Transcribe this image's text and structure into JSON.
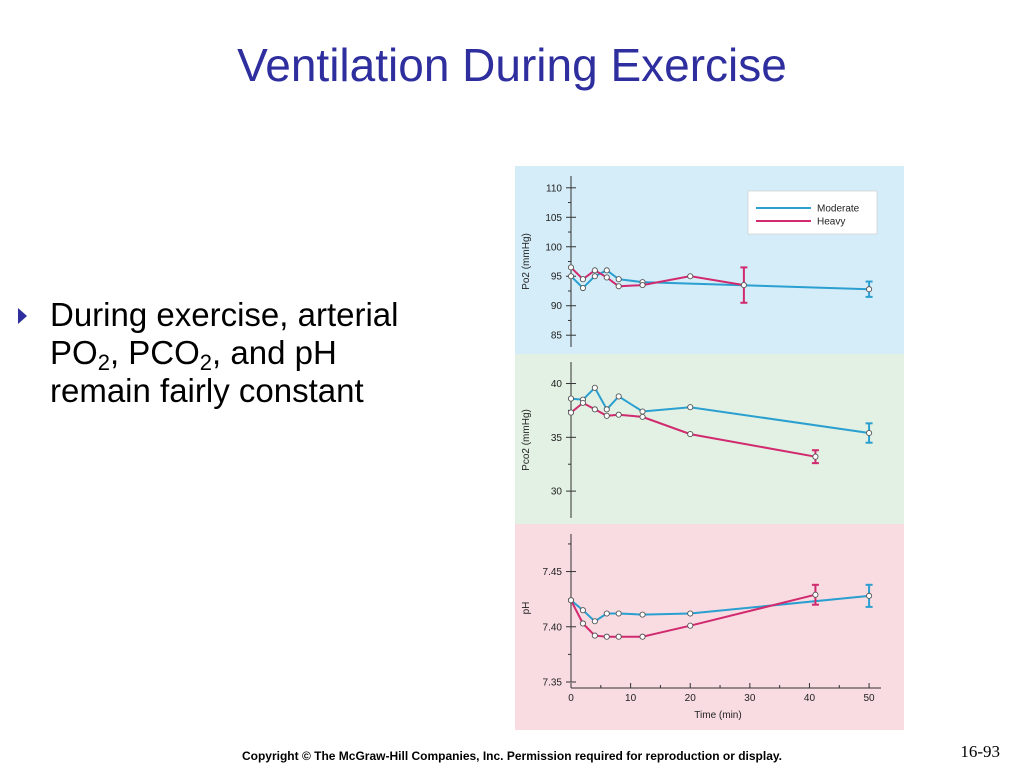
{
  "slide": {
    "title": "Ventilation During Exercise",
    "bullet": {
      "part1": "During exercise, arterial PO",
      "sub1": "2",
      "part2": ", PCO",
      "sub2": "2",
      "part3": ", and pH remain fairly constant"
    },
    "copyright": "Copyright © The McGraw-Hill Companies, Inc. Permission required for reproduction or display.",
    "page_number": "16-93"
  },
  "colors": {
    "moderate": "#2a9fd0",
    "heavy": "#d12a6e",
    "panel_po2_bg": "#d5edf8",
    "panel_pco2_bg": "#e2f1e3",
    "panel_ph_bg": "#f8dce2",
    "title": "#2e2e9e"
  },
  "chart_data": [
    {
      "type": "line",
      "ylabel": "Po2 (mmHg)",
      "ylim": [
        83,
        112
      ],
      "yticks": [
        85,
        90,
        95,
        100,
        105,
        110
      ],
      "legend": {
        "placement": "top-right",
        "entries": [
          "Moderate",
          "Heavy"
        ]
      },
      "series": [
        {
          "name": "Moderate",
          "x": [
            0,
            2,
            4,
            6,
            8,
            12,
            50
          ],
          "y": [
            95,
            93,
            95,
            96,
            94.5,
            94,
            92.8
          ],
          "error_at_x": [
            50
          ],
          "error": [
            1.3
          ]
        },
        {
          "name": "Heavy",
          "x": [
            0,
            2,
            4,
            6,
            8,
            12,
            20,
            29
          ],
          "y": [
            96.5,
            94.5,
            96,
            94.8,
            93.3,
            93.5,
            95,
            93.5
          ],
          "error_at_x": [
            29
          ],
          "error": [
            3
          ]
        }
      ]
    },
    {
      "type": "line",
      "ylabel": "Pco2 (mmHg)",
      "ylim": [
        27.5,
        42
      ],
      "yticks": [
        30,
        35,
        40
      ],
      "series": [
        {
          "name": "Moderate",
          "x": [
            0,
            2,
            4,
            6,
            8,
            12,
            20,
            50
          ],
          "y": [
            38.6,
            38.5,
            39.6,
            37.6,
            38.8,
            37.4,
            37.8,
            35.4
          ],
          "error_at_x": [
            50
          ],
          "error": [
            0.9
          ]
        },
        {
          "name": "Heavy",
          "x": [
            0,
            2,
            4,
            6,
            8,
            12,
            20,
            41
          ],
          "y": [
            37.3,
            38.2,
            37.6,
            37.0,
            37.1,
            36.9,
            35.3,
            33.2
          ],
          "error_at_x": [
            41
          ],
          "error": [
            0.6
          ]
        }
      ]
    },
    {
      "type": "line",
      "ylabel": "pH",
      "xlabel": "Time (min)",
      "xlim": [
        0,
        52
      ],
      "xticks": [
        0,
        10,
        20,
        30,
        40,
        50
      ],
      "ylim": [
        7.35,
        7.484
      ],
      "yticks": [
        7.35,
        7.4,
        7.45
      ],
      "series": [
        {
          "name": "Moderate",
          "x": [
            0,
            2,
            4,
            6,
            8,
            12,
            20,
            50
          ],
          "y": [
            7.424,
            7.415,
            7.405,
            7.412,
            7.412,
            7.411,
            7.412,
            7.428
          ],
          "error_at_x": [
            50
          ],
          "error": [
            0.01
          ]
        },
        {
          "name": "Heavy",
          "x": [
            0,
            2,
            4,
            6,
            8,
            12,
            20,
            41
          ],
          "y": [
            7.424,
            7.403,
            7.392,
            7.391,
            7.391,
            7.391,
            7.401,
            7.429
          ],
          "error_at_x": [
            41
          ],
          "error": [
            0.009
          ]
        }
      ]
    }
  ]
}
